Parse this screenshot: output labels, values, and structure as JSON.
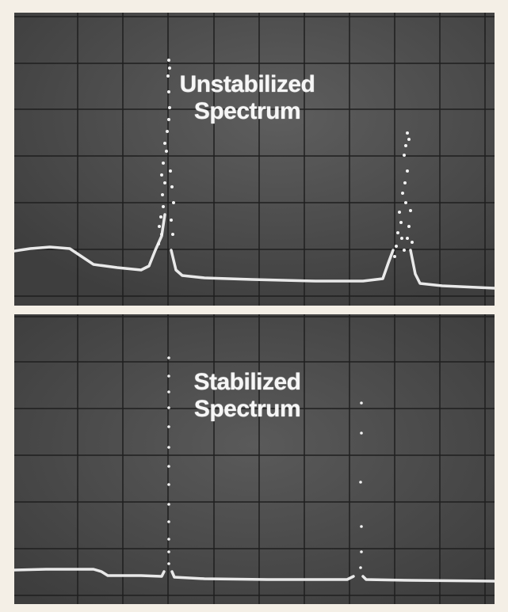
{
  "top_panel": {
    "caption_line1": "Unstabilized",
    "caption_line2": "Spectrum"
  },
  "bottom_panel": {
    "caption_line1": "Stabilized",
    "caption_line2": "Spectrum"
  },
  "colors": {
    "screen": "#4d4d4d",
    "grid": "#1f1f1f",
    "trace": "#f2f2f2",
    "border": "#f4efe6"
  }
}
